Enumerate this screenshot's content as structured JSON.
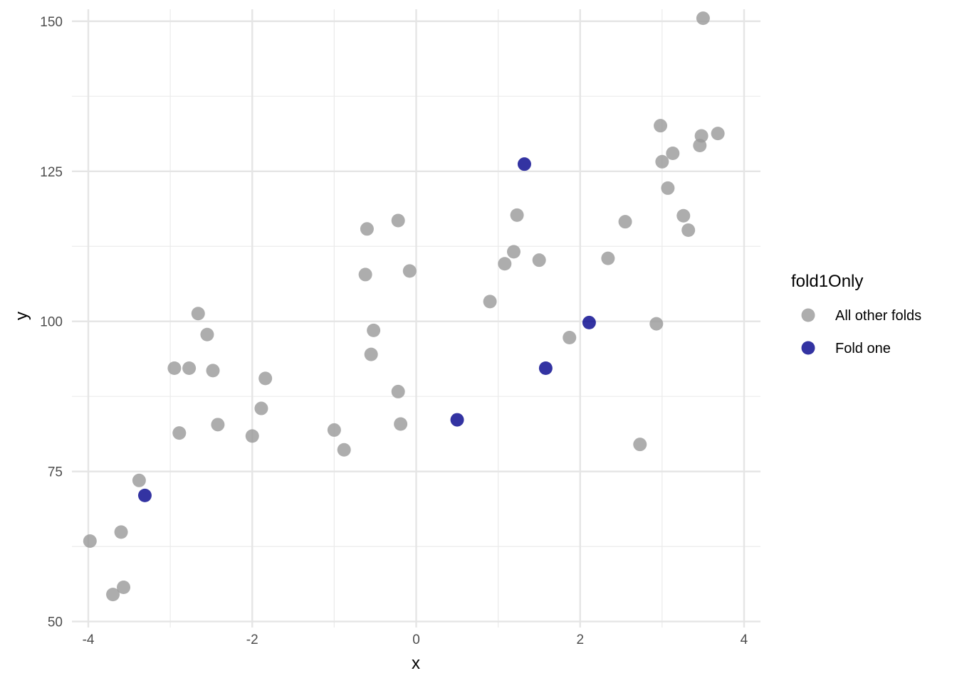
{
  "chart_data": {
    "type": "scatter",
    "xlabel": "x",
    "ylabel": "y",
    "xlim": [
      -4.2,
      4.2
    ],
    "ylim": [
      49,
      152
    ],
    "x_ticks": [
      -4,
      -2,
      0,
      2,
      4
    ],
    "x_tick_labels": [
      "-4",
      "-2",
      "0",
      "2",
      "4"
    ],
    "y_ticks": [
      50,
      75,
      100,
      125,
      150
    ],
    "y_tick_labels": [
      "50",
      "75",
      "100",
      "125",
      "150"
    ],
    "grid": true,
    "legend": {
      "title": "fold1Only",
      "position": "right",
      "entries": [
        "All other folds",
        "Fold one"
      ]
    },
    "series": [
      {
        "name": "All other folds",
        "color": "#999999",
        "points": [
          [
            -3.98,
            63.4
          ],
          [
            -3.7,
            54.5
          ],
          [
            -3.6,
            64.9
          ],
          [
            -3.57,
            55.7
          ],
          [
            -3.38,
            73.5
          ],
          [
            -2.95,
            92.2
          ],
          [
            -2.89,
            81.4
          ],
          [
            -2.77,
            92.2
          ],
          [
            -2.66,
            101.3
          ],
          [
            -2.55,
            97.8
          ],
          [
            -2.48,
            91.8
          ],
          [
            -2.42,
            82.8
          ],
          [
            -2.0,
            80.9
          ],
          [
            -1.89,
            85.5
          ],
          [
            -1.84,
            90.5
          ],
          [
            -1.0,
            81.9
          ],
          [
            -0.88,
            78.6
          ],
          [
            -0.62,
            107.8
          ],
          [
            -0.6,
            115.4
          ],
          [
            -0.55,
            94.5
          ],
          [
            -0.52,
            98.5
          ],
          [
            -0.22,
            116.8
          ],
          [
            -0.22,
            88.3
          ],
          [
            -0.19,
            82.9
          ],
          [
            -0.08,
            108.4
          ],
          [
            0.9,
            103.3
          ],
          [
            1.08,
            109.6
          ],
          [
            1.19,
            111.6
          ],
          [
            1.23,
            117.7
          ],
          [
            1.5,
            110.2
          ],
          [
            1.87,
            97.3
          ],
          [
            2.34,
            110.5
          ],
          [
            2.55,
            116.6
          ],
          [
            2.73,
            79.5
          ],
          [
            2.93,
            99.6
          ],
          [
            2.98,
            132.6
          ],
          [
            3.0,
            126.6
          ],
          [
            3.07,
            122.2
          ],
          [
            3.13,
            128.0
          ],
          [
            3.26,
            117.6
          ],
          [
            3.32,
            115.2
          ],
          [
            3.46,
            129.3
          ],
          [
            3.48,
            130.9
          ],
          [
            3.5,
            150.5
          ],
          [
            3.68,
            131.3
          ]
        ]
      },
      {
        "name": "Fold one",
        "color": "#00008b",
        "points": [
          [
            -3.31,
            71.0
          ],
          [
            0.5,
            83.6
          ],
          [
            1.32,
            126.2
          ],
          [
            1.58,
            92.2
          ],
          [
            2.11,
            99.8
          ]
        ]
      }
    ]
  }
}
